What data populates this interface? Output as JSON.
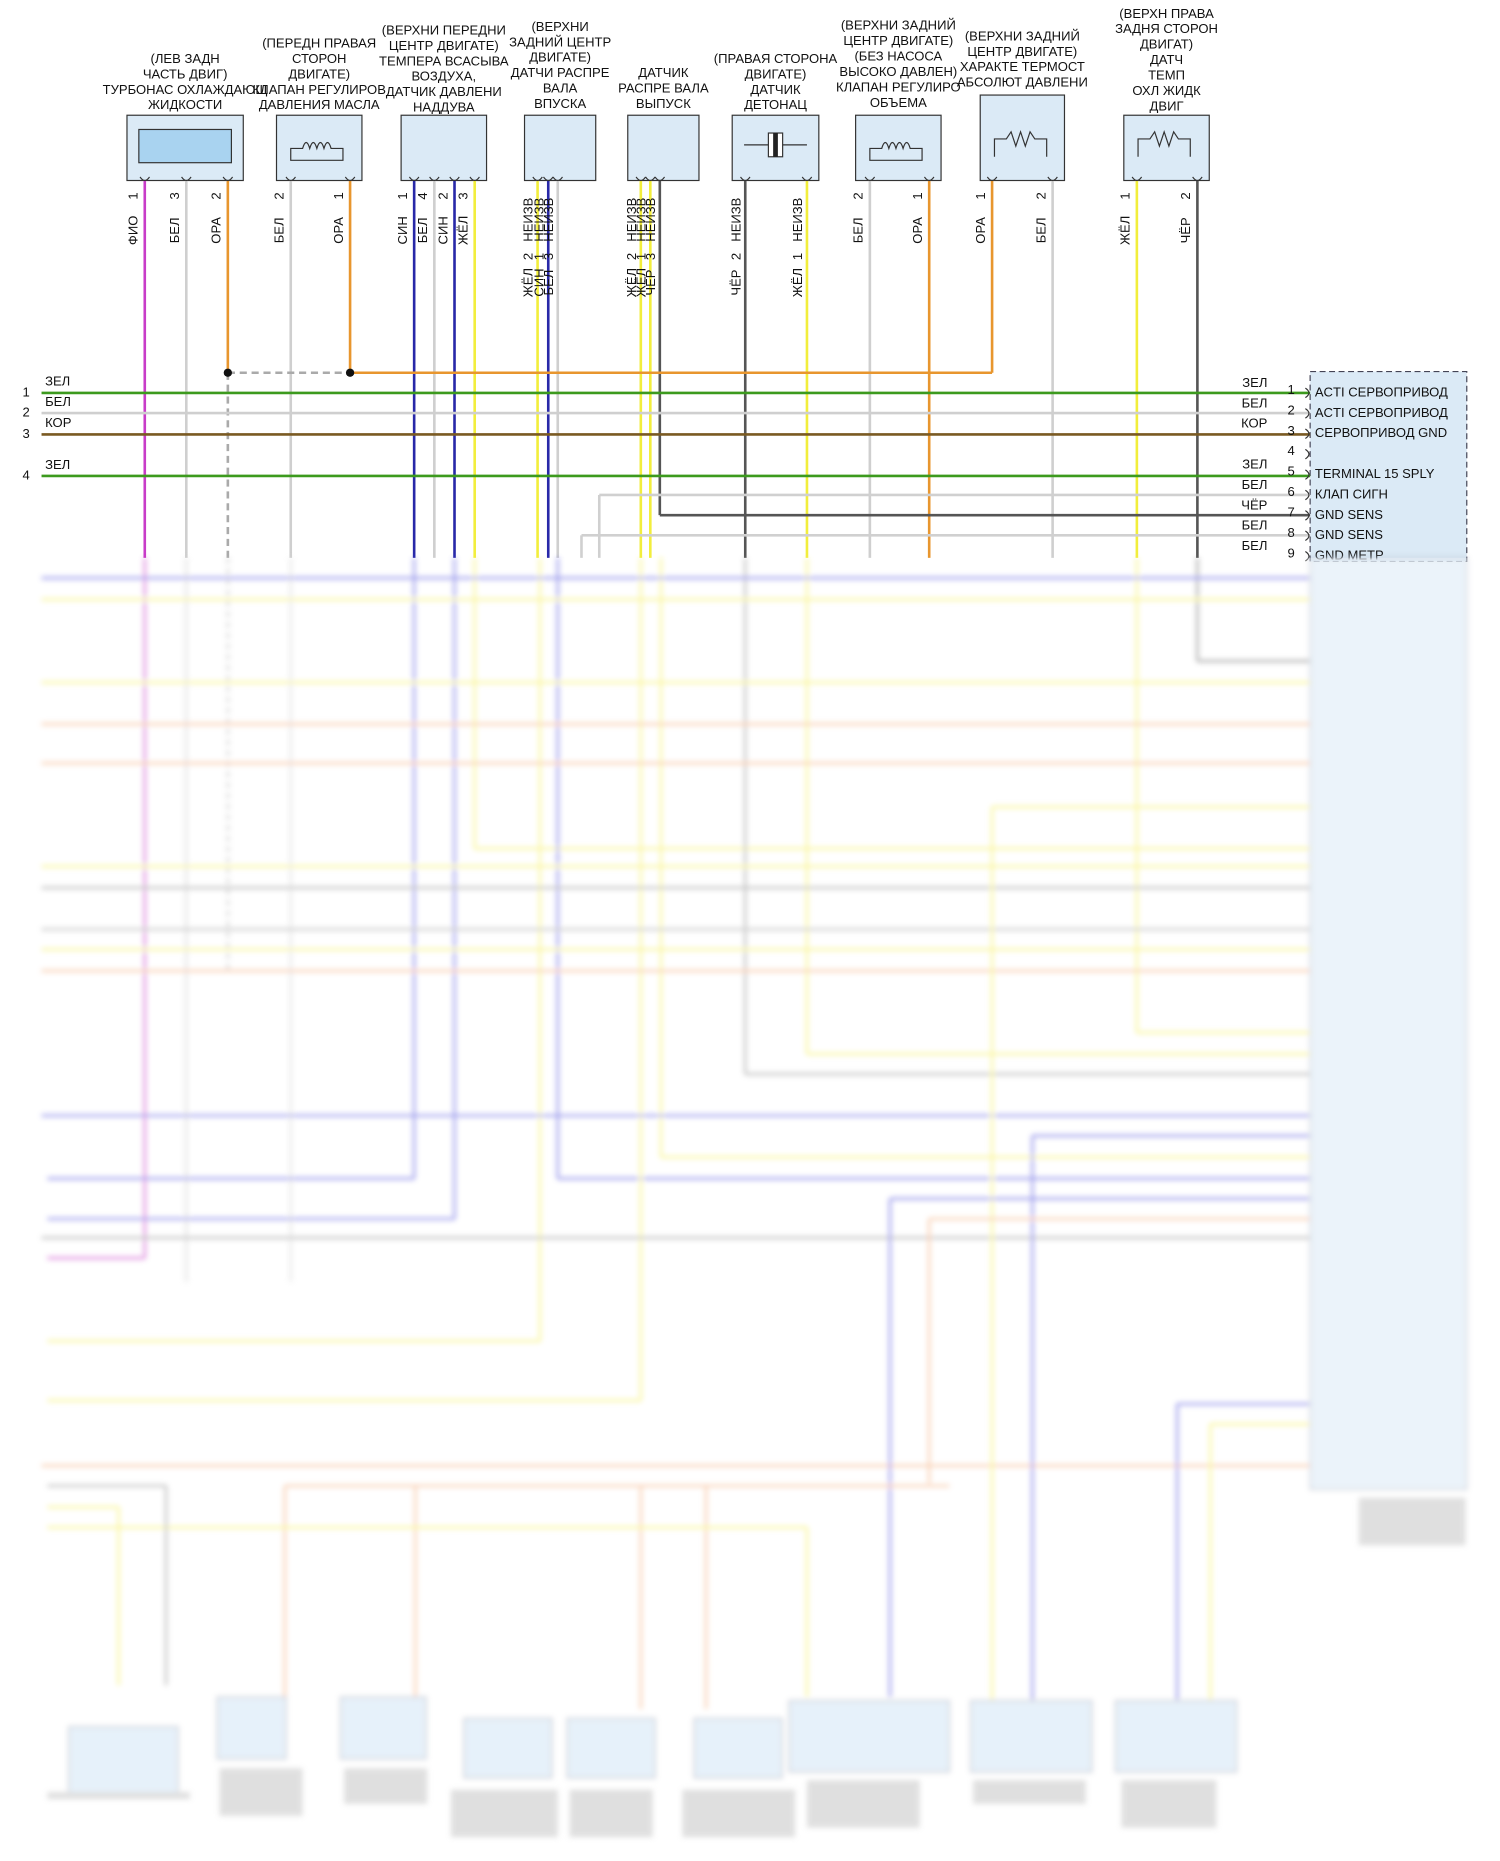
{
  "components": [
    {
      "label": [
        "(ЛЕВ ЗАДН",
        "ЧАСТЬ ДВИГ)",
        "ТУРБОНАС ОХЛАЖДАЮЩ",
        "ЖИДКОСТИ"
      ],
      "pins": [
        {
          "pin": "1",
          "wire": "ФИО",
          "color": "#c83cc8"
        },
        {
          "pin": "3",
          "wire": "БЕЛ",
          "color": "#cfcfcf"
        },
        {
          "pin": "2",
          "wire": "ОРА",
          "color": "#e8962e"
        }
      ]
    },
    {
      "label": [
        "(ПЕРЕДН ПРАВАЯ",
        "СТОРОН",
        "ДВИГАТЕ)",
        "КЛАПАН РЕГУЛИРОВ",
        "ДАВЛЕНИЯ МАСЛА"
      ],
      "pins": [
        {
          "pin": "2",
          "wire": "БЕЛ",
          "color": "#cfcfcf"
        },
        {
          "pin": "1",
          "wire": "ОРА",
          "color": "#e8962e"
        }
      ]
    },
    {
      "label": [
        "(ВЕРХНИ ПЕРЕДНИ",
        "ЦЕНТР ДВИГАТЕ)",
        "ТЕМПЕРА ВСАСЫВА",
        "ВОЗДУХА,",
        "ДАТЧИК ДАВЛЕНИ",
        "НАДДУВА"
      ],
      "pins": [
        {
          "pin": "1",
          "wire": "СИН",
          "color": "#2828a8"
        },
        {
          "pin": "4",
          "wire": "БЕЛ",
          "color": "#cfcfcf"
        },
        {
          "pin": "2",
          "wire": "СИН",
          "color": "#2828a8"
        },
        {
          "pin": "3",
          "wire": "ЖЁЛ",
          "color": "#f2ee3c"
        }
      ]
    },
    {
      "label": [
        "(ВЕРХНИ",
        "ЗАДНИЙ ЦЕНТР",
        "ДВИГАТЕ)",
        "ДАТЧИ РАСПРЕ",
        "ВАЛА",
        "ВПУСКА"
      ],
      "pins": [
        {
          "tag": "НЕИЗВ",
          "wire": "ЖЁЛ",
          "pin": "2",
          "color": "#f2ee3c"
        },
        {
          "tag": "НЕИЗВ",
          "wire": "СИН",
          "pin": "1",
          "color": "#2828a8"
        },
        {
          "tag": "НЕИЗВ",
          "wire": "БЕЛ",
          "pin": "3",
          "color": "#cfcfcf"
        }
      ]
    },
    {
      "label": [
        "ДАТЧИК",
        "РАСПРЕ ВАЛА",
        "ВЫПУСК"
      ],
      "pins": [
        {
          "tag": "НЕИЗВ",
          "wire": "ЖЁЛ",
          "pin": "2",
          "color": "#f2ee3c"
        },
        {
          "tag": "НЕИЗВ",
          "wire": "ЖЁЛ",
          "pin": "1",
          "color": "#f2ee3c"
        },
        {
          "tag": "НЕИЗВ",
          "wire": "ЧЁР",
          "pin": "3",
          "color": "#555555"
        }
      ]
    },
    {
      "label": [
        "(ПРАВАЯ СТОРОНА",
        "ДВИГАТЕ)",
        "ДАТЧИК",
        "ДЕТОНАЦ"
      ],
      "pins": [
        {
          "tag": "НЕИЗВ",
          "wire": "ЧЁР",
          "pin": "2",
          "color": "#555555"
        },
        {
          "tag": "НЕИЗВ",
          "wire": "ЖЁЛ",
          "pin": "1",
          "color": "#f2ee3c"
        }
      ]
    },
    {
      "label": [
        "(ВЕРХНИ ЗАДНИЙ",
        "ЦЕНТР ДВИГАТЕ)",
        "(БЕЗ НАСОСА",
        "ВЫСОКО ДАВЛЕН)",
        "КЛАПАН РЕГУЛИРО",
        "ОБЪЕМА"
      ],
      "pins": [
        {
          "pin": "2",
          "wire": "БЕЛ",
          "color": "#cfcfcf"
        },
        {
          "pin": "1",
          "wire": "ОРА",
          "color": "#e8962e"
        }
      ]
    },
    {
      "label": [
        "(ВЕРХНИ ЗАДНИЙ",
        "ЦЕНТР ДВИГАТЕ)",
        "ХАРАКТЕ ТЕРМОСТ",
        "АБСОЛЮТ ДАВЛЕНИ"
      ],
      "pins": [
        {
          "pin": "1",
          "wire": "ОРА",
          "color": "#e8962e"
        },
        {
          "pin": "2",
          "wire": "БЕЛ",
          "color": "#cfcfcf"
        }
      ]
    },
    {
      "label": [
        "(ВЕРХН ПРАВА",
        "ЗАДНЯ СТОРОН",
        "ДВИГАТ)",
        "ДАТЧ",
        "ТЕМП",
        "ОХЛ ЖИДК",
        "ДВИГ"
      ],
      "pins": [
        {
          "pin": "1",
          "wire": "ЖЁЛ",
          "color": "#f2ee3c"
        },
        {
          "pin": "2",
          "wire": "ЧЁР",
          "color": "#555555"
        }
      ]
    }
  ],
  "left_harness": [
    {
      "pin": "1",
      "wire": "ЗЕЛ",
      "color": "#3c9a1e"
    },
    {
      "pin": "2",
      "wire": "БЕЛ",
      "color": "#cfcfcf"
    },
    {
      "pin": "3",
      "wire": "КОР",
      "color": "#7a5a22"
    },
    {
      "pin": "4",
      "wire": "ЗЕЛ",
      "color": "#3c9a1e"
    }
  ],
  "ecu_connector": [
    {
      "wire": "ЗЕЛ",
      "pin": "1",
      "label": "ACTI СЕРВОПРИВОД"
    },
    {
      "wire": "БЕЛ",
      "pin": "2",
      "label": "ACTI СЕРВОПРИВОД"
    },
    {
      "wire": "КОР",
      "pin": "3",
      "label": "СЕРВОПРИВОД GND"
    },
    {
      "pin": "4"
    },
    {
      "wire": "ЗЕЛ",
      "pin": "5",
      "label": "TERMINAL 15 SPLY"
    },
    {
      "wire": "БЕЛ",
      "pin": "6",
      "label": "КЛАП СИГН"
    },
    {
      "wire": "ЧЁР",
      "pin": "7",
      "label": "GND SENS"
    },
    {
      "wire": "БЕЛ",
      "pin": "8",
      "label": "GND SENS"
    },
    {
      "wire": "БЕЛ",
      "pin": "9",
      "label": "GND МЕТР"
    }
  ]
}
